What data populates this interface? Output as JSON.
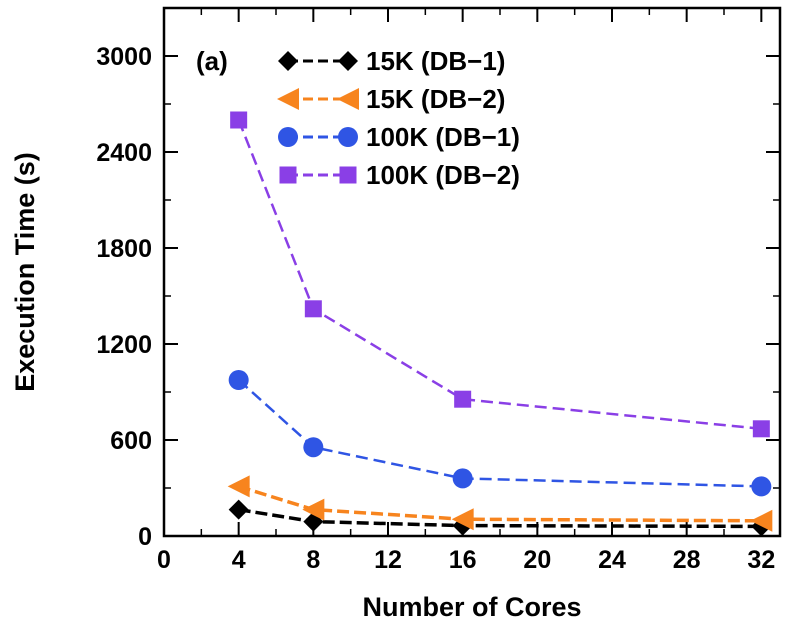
{
  "chart_data": {
    "type": "line",
    "panel_label": "(a)",
    "xlabel": "Number of Cores",
    "ylabel": "Execution Time (s)",
    "xlim": [
      0,
      33
    ],
    "ylim": [
      0,
      3300
    ],
    "xticks": [
      0,
      4,
      8,
      12,
      16,
      20,
      24,
      28,
      32
    ],
    "yticks": [
      0,
      600,
      1200,
      1800,
      2400,
      3000
    ],
    "legend_position": "top-right",
    "grid": false,
    "series": [
      {
        "name": "15K (DB−1)",
        "color": "#000000",
        "marker": "diamond",
        "x": [
          4,
          8,
          16,
          32
        ],
        "y": [
          165,
          90,
          65,
          60
        ]
      },
      {
        "name": "15K (DB−2)",
        "color": "#f7841e",
        "marker": "triangle-left",
        "x": [
          4,
          8,
          16,
          32
        ],
        "y": [
          310,
          165,
          105,
          95
        ]
      },
      {
        "name": "100K (DB−1)",
        "color": "#2f55e4",
        "marker": "circle",
        "x": [
          4,
          8,
          16,
          32
        ],
        "y": [
          975,
          555,
          360,
          310
        ]
      },
      {
        "name": "100K (DB−2)",
        "color": "#8a3fe6",
        "marker": "square",
        "x": [
          4,
          8,
          16,
          32
        ],
        "y": [
          2600,
          1420,
          855,
          670
        ]
      }
    ]
  }
}
